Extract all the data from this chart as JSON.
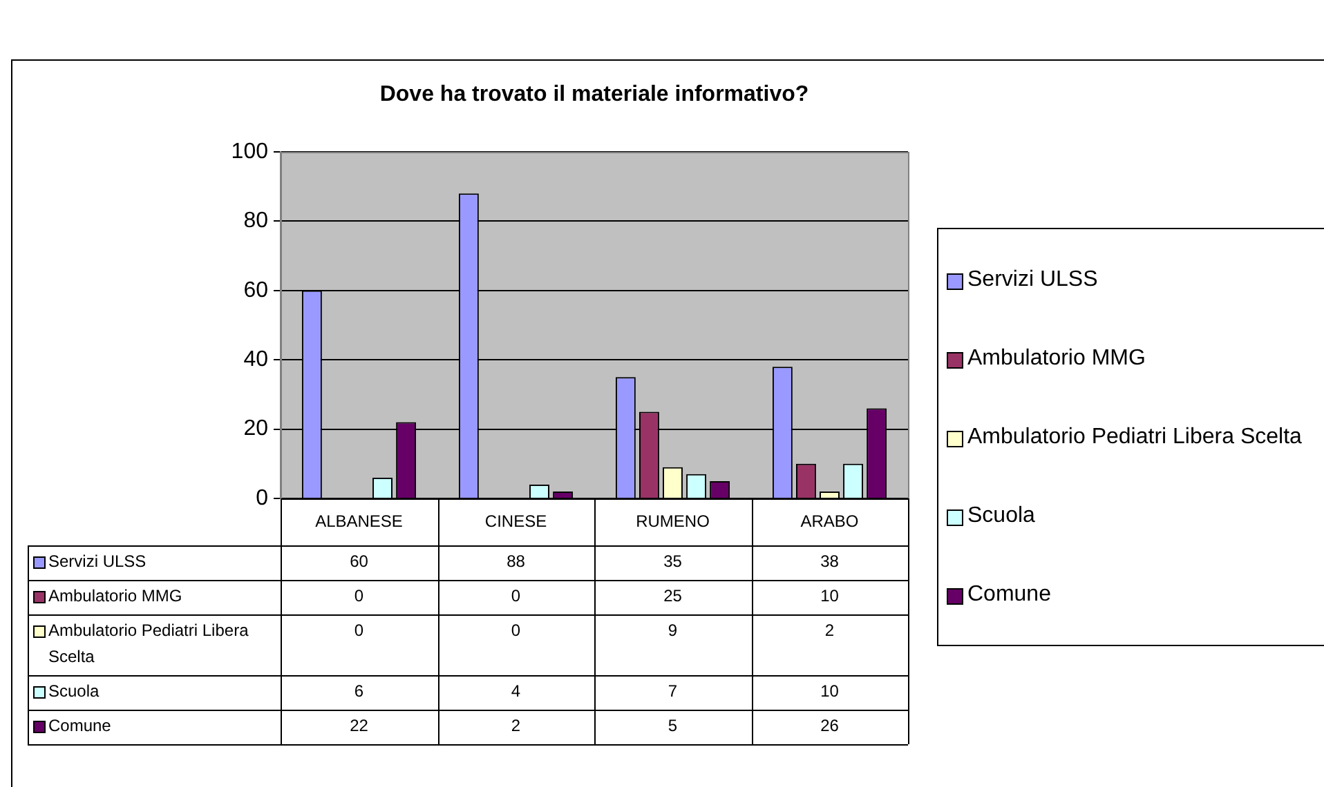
{
  "chart_data": {
    "type": "bar",
    "title": "Dove ha trovato il materiale informativo?",
    "categories": [
      "ALBANESE",
      "CINESE",
      "RUMENO",
      "ARABO"
    ],
    "series": [
      {
        "name": "Servizi ULSS",
        "color": "#9999ff",
        "values": [
          60,
          88,
          35,
          38
        ]
      },
      {
        "name": "Ambulatorio MMG",
        "color": "#993366",
        "values": [
          0,
          0,
          25,
          10
        ]
      },
      {
        "name": "Ambulatorio Pediatri Libera Scelta",
        "color": "#ffffcc",
        "values": [
          0,
          0,
          9,
          2
        ]
      },
      {
        "name": "Scuola",
        "color": "#ccffff",
        "values": [
          6,
          4,
          7,
          10
        ]
      },
      {
        "name": "Comune",
        "color": "#660066",
        "values": [
          22,
          2,
          5,
          26
        ]
      }
    ],
    "ylim": [
      0,
      100
    ],
    "yticks": [
      0,
      20,
      40,
      60,
      80,
      100
    ],
    "grid": "y",
    "legend": "right",
    "data_labels": true
  }
}
